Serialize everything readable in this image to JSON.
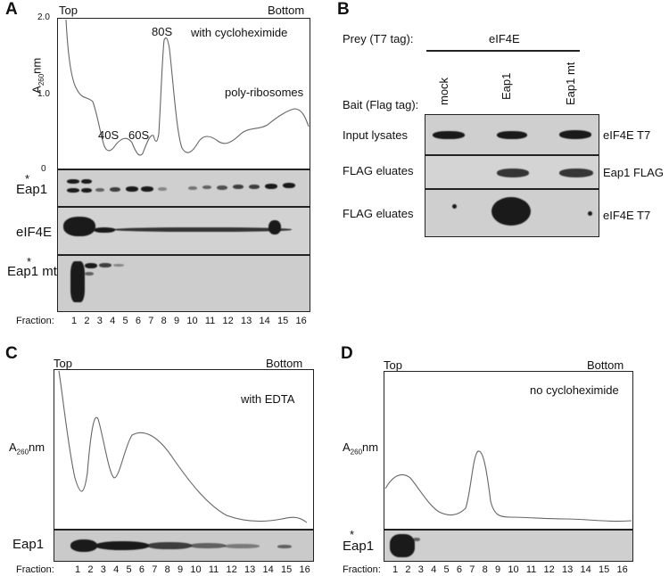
{
  "panelA": {
    "label": "A",
    "top": "Top",
    "bottom": "Bottom",
    "ylabel_main": "A",
    "ylabel_sub": "260",
    "ylabel_unit": "nm",
    "yticks": [
      "2.0",
      "1.0",
      "0"
    ],
    "condition": "with cycloheximide",
    "peak_80s": "80S",
    "peak_40s": "40S",
    "peak_60s": "60S",
    "polysome": "poly-ribosomes",
    "blots": [
      "Eap1",
      "eIF4E",
      "Eap1 mt"
    ],
    "asterisk": "*",
    "fraction_label": "Fraction:",
    "fractions": [
      "1",
      "2",
      "3",
      "4",
      "5",
      "6",
      "7",
      "8",
      "9",
      "10",
      "11",
      "12",
      "13",
      "14",
      "15",
      "16"
    ]
  },
  "panelB": {
    "label": "B",
    "prey": "Prey (T7 tag):",
    "prey_value": "eIF4E",
    "bait": "Bait (Flag tag):",
    "lanes": [
      "mock",
      "Eap1",
      "Eap1 mt"
    ],
    "rows": [
      {
        "left": "Input lysates",
        "right": "eIF4E T7"
      },
      {
        "left": "FLAG eluates",
        "right": "Eap1 FLAG"
      },
      {
        "left": "FLAG eluates",
        "right": "eIF4E T7"
      }
    ]
  },
  "panelC": {
    "label": "C",
    "top": "Top",
    "bottom": "Bottom",
    "ylabel_main": "A",
    "ylabel_sub": "260",
    "ylabel_unit": "nm",
    "condition": "with EDTA",
    "blot": "Eap1",
    "fraction_label": "Fraction:",
    "fractions": [
      "1",
      "2",
      "3",
      "4",
      "5",
      "6",
      "7",
      "8",
      "9",
      "10",
      "11",
      "12",
      "13",
      "14",
      "15",
      "16"
    ]
  },
  "panelD": {
    "label": "D",
    "top": "Top",
    "bottom": "Bottom",
    "ylabel_main": "A",
    "ylabel_sub": "260",
    "ylabel_unit": "nm",
    "condition": "no cycloheximide",
    "blot": "Eap1",
    "asterisk": "*",
    "fraction_label": "Fraction:",
    "fractions": [
      "1",
      "2",
      "3",
      "4",
      "5",
      "6",
      "7",
      "8",
      "9",
      "10",
      "11",
      "12",
      "13",
      "14",
      "15",
      "16"
    ]
  }
}
